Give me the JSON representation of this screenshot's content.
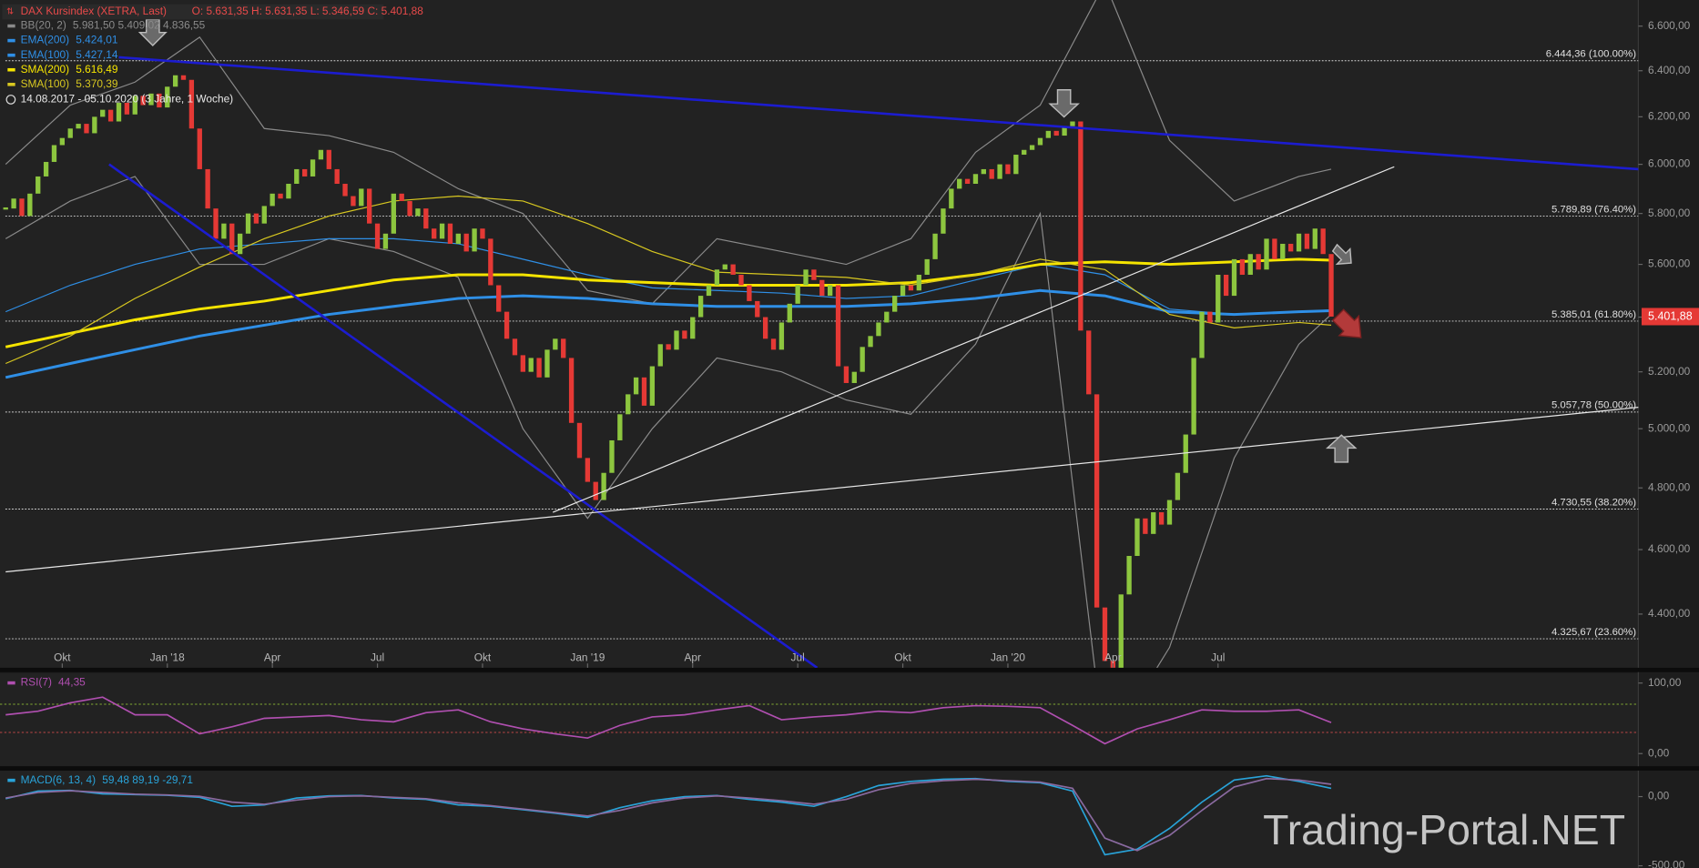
{
  "header": {
    "title": "DAX Kursindex (XETRA, Last)",
    "ohlc": "O: 5.631,35  H: 5.631,35  L: 5.346,59  C: 5.401,88"
  },
  "period": "14.08.2017 - 05.10.2020   (3 Jahre, 1 Woche)",
  "watermark": "Trading-Portal.NET",
  "chart_data": [
    {
      "type": "candlestick",
      "close": [
        5820,
        5860,
        5790,
        5880,
        5950,
        6010,
        6080,
        6110,
        6150,
        6170,
        6130,
        6200,
        6230,
        6180,
        6260,
        6210,
        6290,
        6250,
        6300,
        6240,
        6330,
        6380,
        6360,
        6150,
        5980,
        5820,
        5700,
        5760,
        5640,
        5720,
        5800,
        5760,
        5830,
        5880,
        5860,
        5920,
        5980,
        5950,
        6020,
        6060,
        5980,
        5920,
        5870,
        5830,
        5900,
        5760,
        5660,
        5720,
        5880,
        5850,
        5790,
        5820,
        5740,
        5700,
        5760,
        5680,
        5720,
        5650,
        5740,
        5700,
        5520,
        5420,
        5320,
        5260,
        5200,
        5250,
        5180,
        5280,
        5320,
        5250,
        5020,
        4900,
        4820,
        4760,
        4850,
        4960,
        5050,
        5120,
        5180,
        5080,
        5220,
        5300,
        5280,
        5350,
        5320,
        5400,
        5480,
        5520,
        5580,
        5600,
        5560,
        5520,
        5460,
        5400,
        5320,
        5280,
        5380,
        5450,
        5520,
        5580,
        5540,
        5480,
        5520,
        5220,
        5160,
        5200,
        5290,
        5330,
        5380,
        5420,
        5480,
        5520,
        5500,
        5560,
        5620,
        5720,
        5820,
        5900,
        5940,
        5920,
        5960,
        5980,
        5940,
        6000,
        5960,
        6040,
        6060,
        6080,
        6110,
        6140,
        6120,
        6160,
        6180,
        5350,
        5120,
        4420,
        4260,
        4240,
        4460,
        4580,
        4700,
        4650,
        4720,
        4680,
        4760,
        4850,
        4980,
        5250,
        5420,
        5380,
        5560,
        5480,
        5620,
        5560,
        5640,
        5580,
        5700,
        5620,
        5680,
        5650,
        5720,
        5660,
        5740,
        5640,
        5401.88
      ],
      "up_color": "#8dc63f",
      "down_color": "#e53935",
      "last_price_label": "5.401,88",
      "xlim": [
        -0.7,
        202
      ],
      "ylim": [
        4240,
        6720
      ],
      "log_scale": true,
      "xticks": [
        {
          "value": 7,
          "label": "Okt"
        },
        {
          "value": 20,
          "label": "Jan '18"
        },
        {
          "value": 33,
          "label": "Apr"
        },
        {
          "value": 46,
          "label": "Jul"
        },
        {
          "value": 59,
          "label": "Okt"
        },
        {
          "value": 72,
          "label": "Jan '19"
        },
        {
          "value": 85,
          "label": "Apr"
        },
        {
          "value": 98,
          "label": "Jul"
        },
        {
          "value": 111,
          "label": "Okt"
        },
        {
          "value": 124,
          "label": "Jan '20"
        },
        {
          "value": 137,
          "label": "Apr"
        },
        {
          "value": 150,
          "label": "Jul"
        }
      ],
      "yticks": [
        {
          "value": 6600,
          "label": "6.600,00"
        },
        {
          "value": 6400,
          "label": "6.400,00"
        },
        {
          "value": 6200,
          "label": "6.200,00"
        },
        {
          "value": 6000,
          "label": "6.000,00"
        },
        {
          "value": 5800,
          "label": "5.800,00"
        },
        {
          "value": 5600,
          "label": "5.600,00"
        },
        {
          "value": 5400,
          "label": "5.400,00"
        },
        {
          "value": 5200,
          "label": "5.200,00"
        },
        {
          "value": 5000,
          "label": "5.000,00"
        },
        {
          "value": 4800,
          "label": "4.800,00"
        },
        {
          "value": 4600,
          "label": "4.600,00"
        },
        {
          "value": 4400,
          "label": "4.400,00"
        }
      ],
      "indicator_x": [
        0,
        8,
        16,
        24,
        32,
        40,
        48,
        56,
        64,
        72,
        80,
        88,
        96,
        104,
        112,
        120,
        128,
        136,
        144,
        152,
        160,
        164
      ],
      "series": [
        {
          "name": "BB(20, 2)",
          "legend_values": "5.981,50  5.409,02  4.836,55",
          "color": "#8a8a8a",
          "width": 1,
          "values": [
            6000,
            6250,
            6350,
            6550,
            6150,
            6120,
            6050,
            5900,
            5800,
            5500,
            5450,
            5700,
            5650,
            5600,
            5700,
            6050,
            6250,
            6800,
            6100,
            5850,
            5950,
            5980
          ],
          "lower": [
            5700,
            5850,
            5950,
            5600,
            5600,
            5700,
            5650,
            5550,
            5000,
            4700,
            5000,
            5250,
            5200,
            5100,
            5050,
            5300,
            5800,
            4000,
            4300,
            4900,
            5300,
            5410
          ]
        },
        {
          "name": "EMA(200)",
          "legend_values": "5.424,01",
          "color": "#2f8fe6",
          "width": 2.5,
          "values": [
            5180,
            5230,
            5280,
            5330,
            5370,
            5410,
            5440,
            5470,
            5480,
            5470,
            5450,
            5440,
            5440,
            5440,
            5450,
            5470,
            5500,
            5480,
            5420,
            5410,
            5420,
            5424
          ]
        },
        {
          "name": "EMA(100)",
          "legend_values": "5.427,14",
          "color": "#2f8fe6",
          "width": 1,
          "values": [
            5420,
            5520,
            5600,
            5660,
            5680,
            5700,
            5700,
            5680,
            5620,
            5560,
            5510,
            5500,
            5490,
            5470,
            5480,
            5540,
            5600,
            5560,
            5430,
            5410,
            5420,
            5427
          ]
        },
        {
          "name": "SMA(200)",
          "legend_values": "5.616,49",
          "color": "#f5e400",
          "width": 2.5,
          "values": [
            5290,
            5340,
            5390,
            5430,
            5460,
            5500,
            5540,
            5560,
            5560,
            5540,
            5530,
            5520,
            5520,
            5520,
            5530,
            5560,
            5600,
            5610,
            5600,
            5610,
            5620,
            5616
          ]
        },
        {
          "name": "SMA(100)",
          "legend_values": "5.370,39",
          "color": "#d8c820",
          "width": 1,
          "values": [
            5230,
            5330,
            5470,
            5590,
            5700,
            5790,
            5850,
            5870,
            5850,
            5760,
            5650,
            5570,
            5560,
            5550,
            5520,
            5560,
            5620,
            5580,
            5410,
            5360,
            5380,
            5370
          ]
        }
      ],
      "fib_levels": [
        {
          "value": 6444.36,
          "label": "6.444,36 (100.00%)"
        },
        {
          "value": 5789.89,
          "label": "5.789,89 (76.40%)"
        },
        {
          "value": 5385.01,
          "label": "5.385,01 (61.80%)"
        },
        {
          "value": 5057.78,
          "label": "5.057,78 (50.00%)"
        },
        {
          "value": 4730.55,
          "label": "4.730,55 (38.20%)"
        },
        {
          "value": 4325.67,
          "label": "4.325,67 (23.60%)"
        }
      ],
      "trendlines": [
        {
          "color": "#1c1cd0",
          "x": [
            14,
            204
          ],
          "values": [
            6460,
            5975
          ]
        },
        {
          "color": "#1c1cd0",
          "x": [
            12.8,
            100.4
          ],
          "values": [
            6000,
            4240
          ]
        },
        {
          "color": "#e8e8e8",
          "x": [
            67.7,
            171.8
          ],
          "values": [
            4720,
            5990
          ]
        },
        {
          "color": "#e8e8e8",
          "x": [
            0,
            204
          ],
          "values": [
            4530,
            5080
          ]
        }
      ]
    },
    {
      "type": "line",
      "name": "RSI(7)",
      "legend_values": "44,35",
      "color": "#b04fb0",
      "x": [
        0,
        4,
        8,
        12,
        16,
        20,
        24,
        28,
        32,
        36,
        40,
        44,
        48,
        52,
        56,
        60,
        64,
        68,
        72,
        76,
        80,
        84,
        88,
        92,
        96,
        100,
        104,
        108,
        112,
        116,
        120,
        124,
        128,
        132,
        136,
        140,
        144,
        148,
        152,
        156,
        160,
        164
      ],
      "values": [
        55,
        60,
        72,
        80,
        55,
        55,
        28,
        38,
        50,
        52,
        54,
        48,
        45,
        58,
        62,
        45,
        35,
        28,
        22,
        40,
        52,
        55,
        62,
        68,
        48,
        52,
        55,
        60,
        58,
        65,
        68,
        67,
        65,
        40,
        14,
        35,
        48,
        62,
        60,
        60,
        62,
        44
      ],
      "xlim": [
        -0.7,
        202
      ],
      "ylim": [
        -18,
        114
      ],
      "yticks": [
        {
          "value": 100,
          "label": "100,00"
        },
        {
          "value": 0,
          "label": "0,00"
        }
      ],
      "levels": [
        {
          "value": 70,
          "color": "#6f8f2f"
        },
        {
          "value": 30,
          "color": "#a04040"
        }
      ]
    },
    {
      "type": "line",
      "x": [
        0,
        4,
        8,
        12,
        16,
        20,
        24,
        28,
        32,
        36,
        40,
        44,
        48,
        52,
        56,
        60,
        64,
        68,
        72,
        76,
        80,
        84,
        88,
        92,
        96,
        100,
        104,
        108,
        112,
        116,
        120,
        124,
        128,
        132,
        136,
        140,
        144,
        148,
        152,
        156,
        160,
        164
      ],
      "series": [
        {
          "name": "MACD(6, 13, 4)",
          "legend_values": "59,48  89,19  -29,71",
          "color": "#29a3d9",
          "values": [
            -15,
            40,
            45,
            20,
            15,
            10,
            -5,
            -70,
            -60,
            -10,
            5,
            8,
            -10,
            -20,
            -60,
            -70,
            -95,
            -120,
            -150,
            -80,
            -30,
            0,
            8,
            -20,
            -40,
            -70,
            0,
            80,
            110,
            125,
            130,
            110,
            100,
            40,
            -420,
            -380,
            -230,
            -40,
            120,
            150,
            110,
            60
          ]
        },
        {
          "color": "#8a6aa0",
          "values": [
            -10,
            30,
            42,
            30,
            18,
            12,
            2,
            -40,
            -55,
            -25,
            0,
            5,
            -5,
            -15,
            -45,
            -65,
            -90,
            -115,
            -140,
            -100,
            -45,
            -10,
            5,
            -10,
            -30,
            -55,
            -20,
            50,
            95,
            115,
            125,
            115,
            105,
            60,
            -300,
            -390,
            -280,
            -100,
            70,
            130,
            120,
            89
          ]
        }
      ],
      "xlim": [
        -0.7,
        202
      ],
      "ylim": [
        -516,
        188
      ],
      "yticks": [
        {
          "value": 0,
          "label": "0,00"
        },
        {
          "value": -500,
          "label": "-500,00"
        }
      ]
    }
  ]
}
